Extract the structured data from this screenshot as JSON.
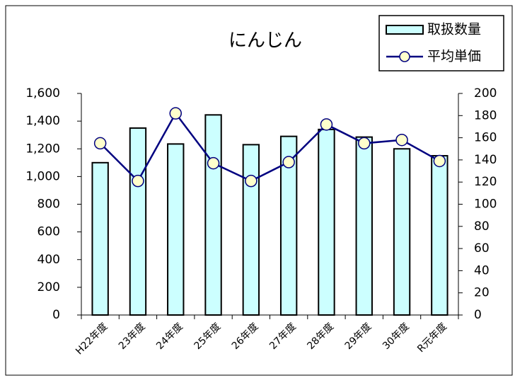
{
  "chart_data": {
    "type": "bar-line",
    "title": "にんじん",
    "categories": [
      "H22年度",
      "23年度",
      "24年度",
      "25年度",
      "26年度",
      "27年度",
      "28年度",
      "29年度",
      "30年度",
      "R元年度"
    ],
    "series": [
      {
        "name": "取扱数量",
        "type": "bar",
        "color": "#ccffff",
        "values": [
          1100,
          1350,
          1235,
          1445,
          1230,
          1290,
          1340,
          1285,
          1200,
          1150
        ]
      },
      {
        "name": "平均単価",
        "type": "line",
        "axis": "y2",
        "color": "#000080",
        "values": [
          155,
          121,
          182,
          137,
          121,
          138,
          172,
          155,
          158,
          139
        ]
      }
    ],
    "ylim": [
      0,
      1600
    ],
    "yticks": [
      0,
      200,
      400,
      600,
      800,
      {
        "value": 1000,
        "label": "1,000"
      },
      {
        "value": 1200,
        "label": "1,200"
      },
      {
        "value": 1400,
        "label": "1,400"
      },
      {
        "value": 1600,
        "label": "1,600"
      }
    ],
    "y2lim": [
      0,
      200
    ],
    "y2ticks": [
      0,
      20,
      40,
      60,
      80,
      100,
      120,
      140,
      160,
      180,
      200
    ],
    "legend": "top-right"
  }
}
